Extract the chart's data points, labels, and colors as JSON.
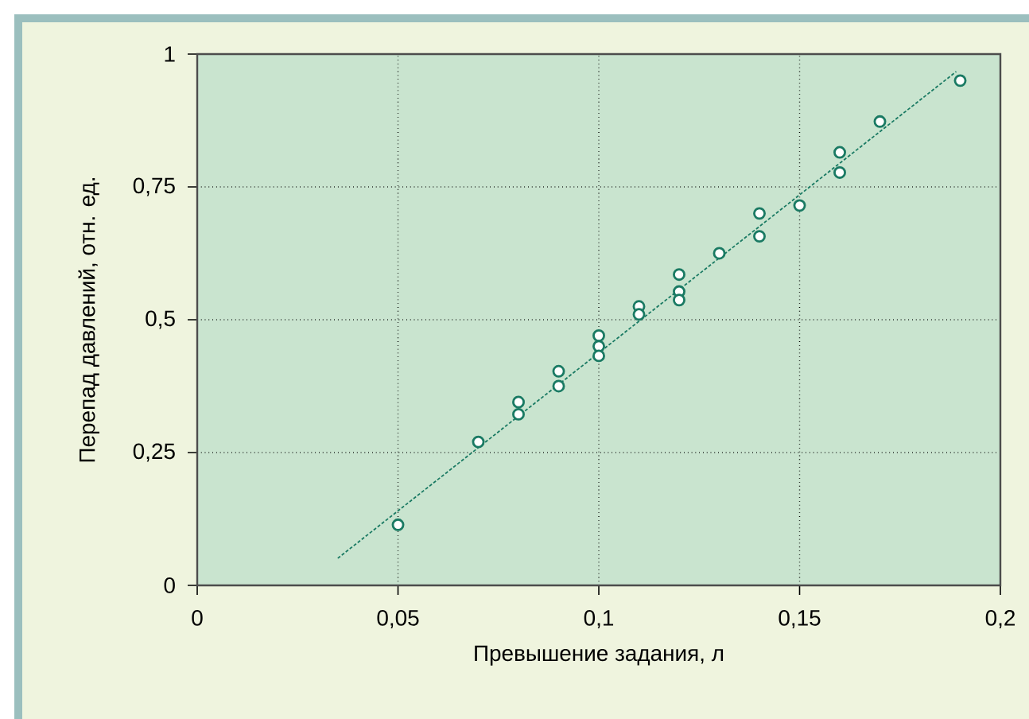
{
  "chart_data": {
    "type": "scatter",
    "xlabel": "Превышение задания, л",
    "ylabel": "Перепад давлений, отн. ед.",
    "xlim": [
      0,
      0.2
    ],
    "ylim": [
      0,
      1
    ],
    "xticks": [
      0,
      {
        "value": 0.05,
        "label": "0,05"
      },
      {
        "value": 0.1,
        "label": "0,1"
      },
      {
        "value": 0.15,
        "label": "0,15"
      },
      {
        "value": 0.2,
        "label": "0,2"
      }
    ],
    "yticks": [
      0,
      {
        "value": 0.25,
        "label": "0,25"
      },
      {
        "value": 0.5,
        "label": "0,5"
      },
      {
        "value": 0.75,
        "label": "0,75"
      },
      1
    ],
    "grid": true,
    "series": [
      {
        "type": "line",
        "color": "#1a7a63",
        "line_style": "dashed",
        "marker": "none",
        "x": [
          0.035,
          0.189
        ],
        "values": [
          0.051,
          0.967
        ]
      },
      {
        "color": "#1a7a63",
        "marker": "circle",
        "x": [
          0.05,
          0.07,
          0.08,
          0.08,
          0.09,
          0.09,
          0.1,
          0.1,
          0.1,
          0.11,
          0.11,
          0.12,
          0.12,
          0.12,
          0.13,
          0.14,
          0.14,
          0.15,
          0.16,
          0.16,
          0.17,
          0.19
        ],
        "values": [
          0.114,
          0.27,
          0.345,
          0.322,
          0.403,
          0.375,
          0.47,
          0.45,
          0.432,
          0.525,
          0.51,
          0.585,
          0.553,
          0.537,
          0.625,
          0.7,
          0.657,
          0.715,
          0.815,
          0.777,
          0.873,
          0.95
        ]
      }
    ]
  }
}
